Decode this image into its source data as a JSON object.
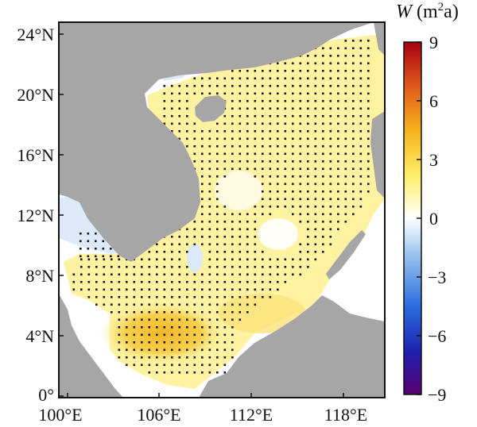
{
  "figure": {
    "lat_ticks": [
      "24°N",
      "20°N",
      "16°N",
      "12°N",
      "8°N",
      "4°N",
      "0°"
    ],
    "lon_ticks": [
      "100°E",
      "106°E",
      "112°E",
      "118°E"
    ],
    "colorbar": {
      "variable": "W",
      "unit_open": "(m",
      "unit_sup": "2",
      "unit_close": "a)",
      "ticks": [
        "9",
        "6",
        "3",
        "0",
        "−3",
        "−6",
        "−9"
      ],
      "range": [
        -9,
        9
      ],
      "colormap": [
        "#5a0070",
        "#1f1fb0",
        "#2a6de0",
        "#9cc6ef",
        "#ffffff",
        "#ffef6a",
        "#f5b21a",
        "#e0551c",
        "#a60010"
      ]
    },
    "colors": {
      "land": "#a6a6a6",
      "sea_field_positive": "#fff2a0",
      "sea_field_strong": "#f8c637",
      "sea_field_negative": "#dbe9f8",
      "stipple": "#1a1a1a"
    }
  }
}
